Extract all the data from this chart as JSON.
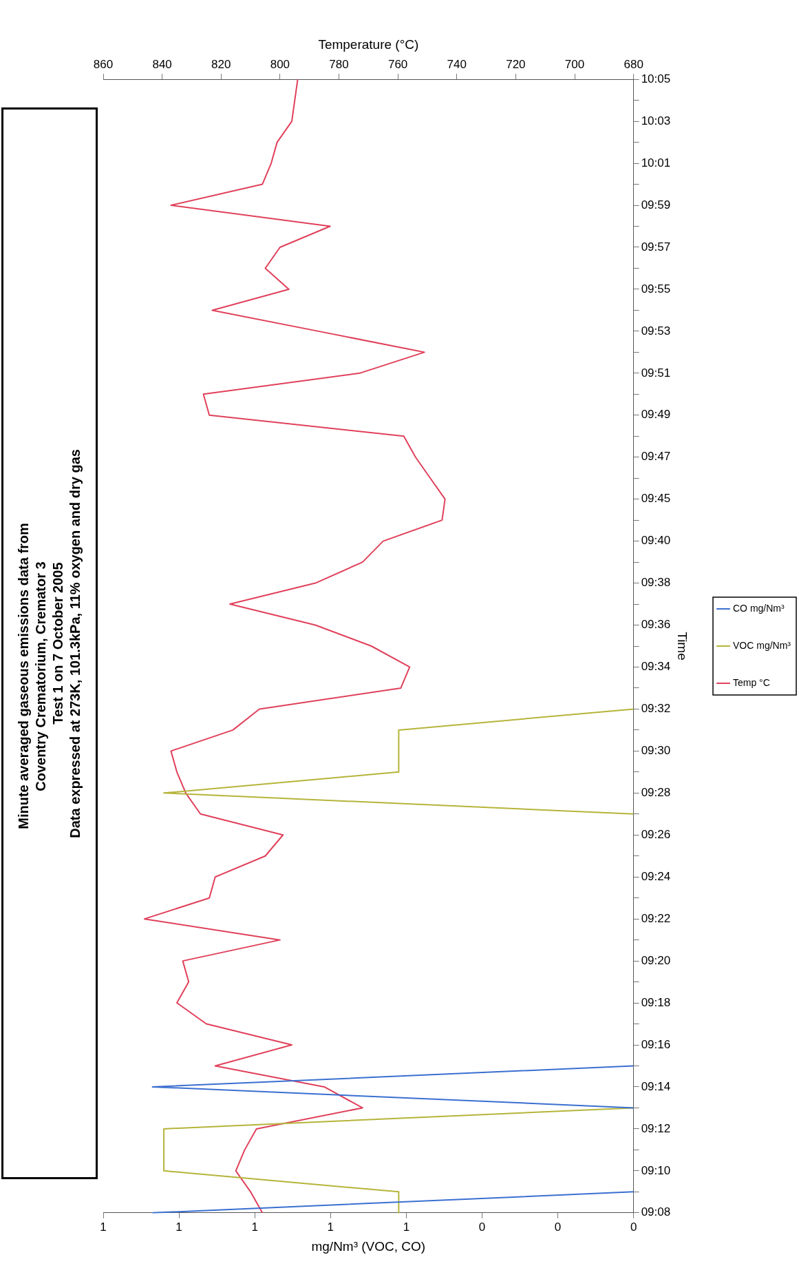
{
  "chart_data": {
    "type": "line",
    "orientation": "horizontal",
    "title": "Minute averaged gaseous emissions data from Coventry Crematorium, Cremator 3",
    "subtitle": "Test 1 on 7 October 2005",
    "annotations": [
      "Data expressed at 273K, 101.3kPa, 11% oxygen and dry gas"
    ],
    "ylabel": "Time",
    "xlabel": "mg/Nm³ (VOC, CO)",
    "x2label": "Temperature (°C)",
    "categories": [
      "10:05",
      null,
      "10:03",
      null,
      "10:01",
      null,
      "09:59",
      null,
      "09:57",
      null,
      "09:55",
      null,
      "09:53",
      null,
      "09:51",
      null,
      "09:49",
      null,
      "09:47",
      null,
      "09:45",
      null,
      "09:40",
      null,
      "09:38",
      null,
      "09:36",
      null,
      "09:34",
      null,
      "09:32",
      null,
      "09:30",
      null,
      "09:28",
      null,
      "09:26",
      null,
      "09:24",
      null,
      "09:22",
      null,
      "09:20",
      null,
      "09:18",
      null,
      "09:16",
      null,
      "09:14",
      null,
      "09:12",
      null,
      "09:10",
      null,
      "09:08"
    ],
    "series": [
      {
        "name": "CO mg/Nm³",
        "color": "#3a6fd0",
        "values": [
          null,
          null,
          null,
          null,
          null,
          null,
          null,
          null,
          null,
          null,
          null,
          null,
          null,
          null,
          null,
          null,
          null,
          null,
          null,
          null,
          null,
          null,
          null,
          null,
          null,
          null,
          null,
          null,
          null,
          null,
          null,
          null,
          null,
          null,
          null,
          null,
          null,
          null,
          null,
          null,
          null,
          null,
          null,
          null,
          null,
          null,
          null,
          0,
          1.27,
          0,
          null,
          null,
          null,
          0,
          1.27
        ]
      },
      {
        "name": "VOC mg/Nm³",
        "color": "#b5b43a",
        "values": [
          null,
          null,
          null,
          null,
          null,
          null,
          null,
          null,
          null,
          null,
          null,
          null,
          null,
          null,
          null,
          null,
          null,
          null,
          null,
          null,
          null,
          null,
          null,
          null,
          null,
          null,
          null,
          null,
          null,
          null,
          0,
          0.62,
          0.62,
          0.62,
          1.24,
          0,
          null,
          null,
          null,
          null,
          null,
          null,
          null,
          null,
          null,
          null,
          null,
          null,
          null,
          0,
          1.24,
          1.24,
          1.24,
          0.62,
          0.62
        ]
      },
      {
        "name": "Temp °C",
        "color": "#e0405a",
        "axis": "x2",
        "values": [
          794,
          795,
          796,
          801,
          803,
          806,
          837,
          783,
          800,
          805,
          797,
          823,
          787,
          751,
          773,
          826,
          824,
          758,
          754,
          749,
          744,
          745,
          765,
          772,
          788,
          817,
          788,
          769,
          756,
          759,
          807,
          816,
          837,
          835,
          832,
          827,
          799,
          805,
          822,
          824,
          846,
          800,
          833,
          831,
          835,
          825,
          796,
          822,
          785,
          772,
          808,
          812,
          815,
          810,
          806
        ]
      }
    ],
    "xlim": [
      1.4,
      0
    ],
    "xticks": [
      {
        "value": 1.4,
        "label": "1"
      },
      {
        "value": 1.2,
        "label": "1"
      },
      {
        "value": 1.0,
        "label": "1"
      },
      {
        "value": 0.8,
        "label": "1"
      },
      {
        "value": 0.6,
        "label": "1"
      },
      {
        "value": 0.4,
        "label": "0"
      },
      {
        "value": 0.2,
        "label": "0"
      },
      {
        "value": 0,
        "label": "0"
      }
    ],
    "x2lim": [
      860,
      680
    ],
    "x2ticks": [
      860,
      840,
      820,
      800,
      780,
      760,
      740,
      720,
      700,
      680
    ],
    "legend": "right",
    "grid": false
  }
}
